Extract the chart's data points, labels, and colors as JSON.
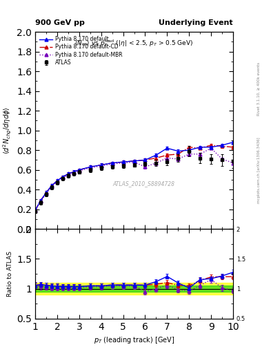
{
  "title_left": "900 GeV pp",
  "title_right": "Underlying Event",
  "watermark": "ATLAS_2010_S8894728",
  "xlabel": "p_{T} (leading track) [GeV]",
  "ylabel_main": "<d^{2} N_{chg}/d#etad#phi>",
  "ylabel_ratio": "Ratio to ATLAS",
  "right_label_top": "Rivet 3.1.10, ≥ 400k events",
  "right_label_bottom": "mcplots.cern.ch [arXiv:1306.3436]",
  "xlim": [
    1,
    10
  ],
  "ylim_main": [
    0.0,
    2.0
  ],
  "ylim_ratio": [
    0.5,
    2.0
  ],
  "atlas_x": [
    1.0,
    1.25,
    1.5,
    1.75,
    2.0,
    2.25,
    2.5,
    2.75,
    3.0,
    3.5,
    4.0,
    4.5,
    5.0,
    5.5,
    6.0,
    6.5,
    7.0,
    7.5,
    8.0,
    8.5,
    9.0,
    9.5,
    10.0
  ],
  "atlas_y": [
    0.18,
    0.27,
    0.35,
    0.42,
    0.47,
    0.51,
    0.54,
    0.56,
    0.58,
    0.6,
    0.62,
    0.63,
    0.64,
    0.65,
    0.66,
    0.67,
    0.68,
    0.72,
    0.79,
    0.72,
    0.71,
    0.7,
    0.69
  ],
  "atlas_yerr": [
    0.02,
    0.02,
    0.02,
    0.02,
    0.02,
    0.02,
    0.02,
    0.02,
    0.02,
    0.02,
    0.02,
    0.02,
    0.02,
    0.02,
    0.02,
    0.03,
    0.03,
    0.04,
    0.05,
    0.05,
    0.05,
    0.06,
    0.07
  ],
  "py_default_x": [
    1.0,
    1.25,
    1.5,
    1.75,
    2.0,
    2.25,
    2.5,
    2.75,
    3.0,
    3.5,
    4.0,
    4.5,
    5.0,
    5.5,
    6.0,
    6.5,
    7.0,
    7.5,
    8.0,
    8.5,
    9.0,
    9.5,
    10.0
  ],
  "py_default_y": [
    0.19,
    0.29,
    0.37,
    0.44,
    0.49,
    0.53,
    0.56,
    0.58,
    0.6,
    0.63,
    0.65,
    0.67,
    0.68,
    0.69,
    0.7,
    0.75,
    0.82,
    0.79,
    0.8,
    0.83,
    0.83,
    0.85,
    0.88
  ],
  "py_cd_x": [
    1.0,
    1.25,
    1.5,
    1.75,
    2.0,
    2.25,
    2.5,
    2.75,
    3.0,
    3.5,
    4.0,
    4.5,
    5.0,
    5.5,
    6.0,
    6.5,
    7.0,
    7.5,
    8.0,
    8.5,
    9.0,
    9.5,
    10.0
  ],
  "py_cd_y": [
    0.19,
    0.29,
    0.37,
    0.44,
    0.49,
    0.53,
    0.56,
    0.58,
    0.6,
    0.63,
    0.65,
    0.67,
    0.68,
    0.69,
    0.7,
    0.72,
    0.75,
    0.76,
    0.83,
    0.82,
    0.85,
    0.84,
    0.83
  ],
  "py_mbr_x": [
    1.0,
    1.25,
    1.5,
    1.75,
    2.0,
    2.25,
    2.5,
    2.75,
    3.0,
    3.5,
    4.0,
    4.5,
    5.0,
    5.5,
    6.0,
    6.5,
    7.0,
    7.5,
    8.0,
    8.5,
    9.0,
    9.5,
    10.0
  ],
  "py_mbr_y": [
    0.19,
    0.28,
    0.36,
    0.43,
    0.48,
    0.52,
    0.55,
    0.57,
    0.59,
    0.62,
    0.64,
    0.66,
    0.67,
    0.68,
    0.63,
    0.67,
    0.72,
    0.71,
    0.76,
    0.76,
    0.82,
    0.71,
    0.67
  ],
  "atlas_color": "black",
  "py_default_color": "#0000ee",
  "py_cd_color": "#cc0000",
  "py_mbr_color": "#7700bb",
  "green_band": 0.05,
  "yellow_band": 0.1,
  "yticks_main": [
    0.0,
    0.2,
    0.4,
    0.6,
    0.8,
    1.0,
    1.2,
    1.4,
    1.6,
    1.8,
    2.0
  ],
  "yticks_ratio": [
    0.5,
    1.0,
    1.5,
    2.0
  ],
  "xticks": [
    1,
    2,
    3,
    4,
    5,
    6,
    7,
    8,
    9,
    10
  ]
}
